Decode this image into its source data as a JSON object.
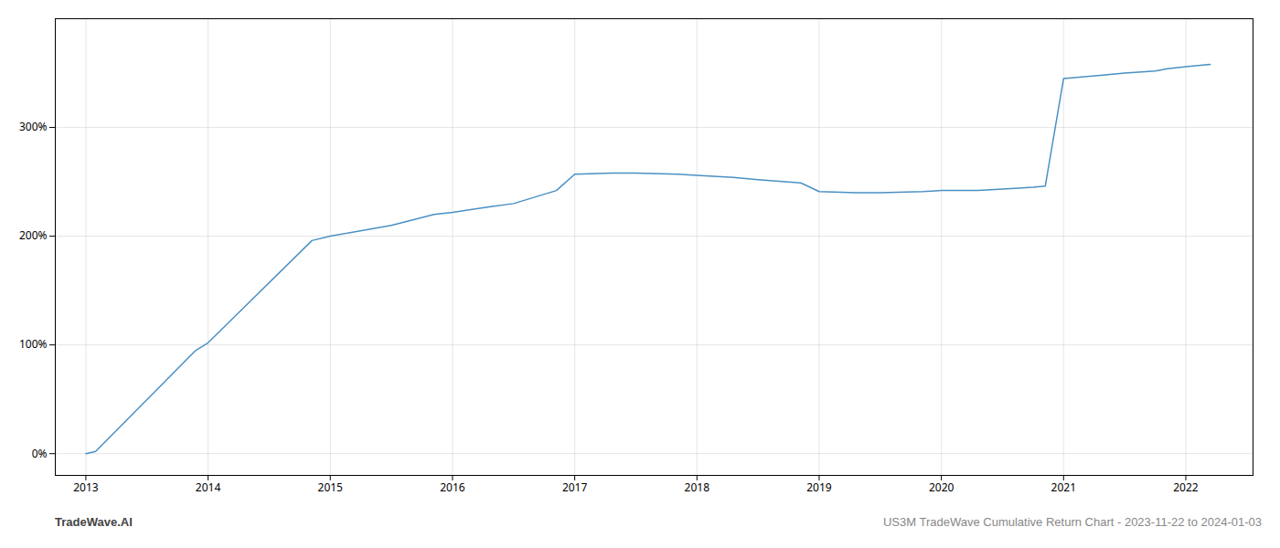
{
  "chart_data": {
    "type": "line",
    "annotations": [
      "TradeWave.AI",
      "US3M TradeWave Cumulative Return Chart - 2023-11-22 to 2024-01-03"
    ],
    "x": [
      2013.0,
      2013.08,
      2013.9,
      2014.0,
      2014.85,
      2015.0,
      2015.5,
      2015.85,
      2016.0,
      2016.3,
      2016.5,
      2016.85,
      2017.0,
      2017.3,
      2017.5,
      2017.85,
      2018.0,
      2018.3,
      2018.5,
      2018.85,
      2019.0,
      2019.3,
      2019.5,
      2019.85,
      2020.0,
      2020.3,
      2020.6,
      2020.75,
      2020.85,
      2021.0,
      2021.3,
      2021.5,
      2021.75,
      2021.85,
      2022.0,
      2022.2
    ],
    "values": [
      0,
      2,
      95,
      102,
      196,
      200,
      210,
      220,
      222,
      227,
      230,
      242,
      257,
      258,
      258,
      257,
      256,
      254,
      252,
      249,
      241,
      240,
      240,
      241,
      242,
      242,
      244,
      245,
      246,
      345,
      348,
      350,
      352,
      354,
      356,
      358
    ],
    "color": "#4a90c4",
    "xlim": [
      2012.75,
      2022.55
    ],
    "xticks": [
      2013,
      2014,
      2015,
      2016,
      2017,
      2018,
      2019,
      2020,
      2021,
      2022
    ],
    "ylim": [
      -20,
      400
    ],
    "yticks": [
      {
        "value": 0,
        "label": "0%"
      },
      {
        "value": 100,
        "label": "100%"
      },
      {
        "value": 200,
        "label": "200%"
      },
      {
        "value": 300,
        "label": "300%"
      }
    ],
    "grid": true
  }
}
